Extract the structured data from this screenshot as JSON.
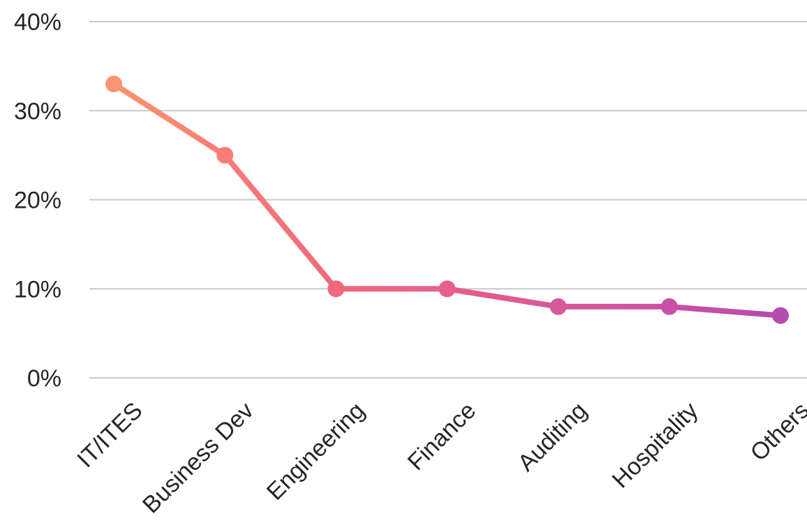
{
  "chart_data": {
    "type": "line",
    "title": "",
    "xlabel": "",
    "ylabel": "",
    "categories": [
      "IT/ITES",
      "Business Dev",
      "Engineering",
      "Finance",
      "Auditing",
      "Hospitality",
      "Others"
    ],
    "series": [
      {
        "values": [
          33,
          25,
          10,
          10,
          8,
          8,
          7
        ]
      }
    ],
    "ylim": [
      0,
      40
    ],
    "yticks": [
      0,
      10,
      20,
      30,
      40
    ],
    "ytick_labels": [
      "0%",
      "10%",
      "20%",
      "30%",
      "40%"
    ],
    "grid": true,
    "legend": "none",
    "colors": [
      "#fb9470",
      "#f97c76",
      "#f0687c",
      "#e6608a",
      "#d85798",
      "#cb4fa4",
      "#b54cae"
    ]
  }
}
